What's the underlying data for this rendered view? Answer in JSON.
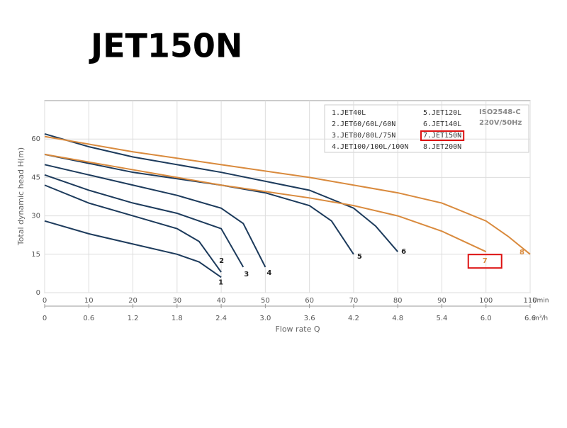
{
  "chart_data": {
    "type": "line",
    "title": "JET150N",
    "x_label": "Flow rate Q",
    "y_label": "Total dynamic head H(m)",
    "x_unit": "l/min",
    "x2_unit": "m³/h",
    "xlim": [
      0,
      110
    ],
    "xticks": [
      0,
      10,
      20,
      30,
      40,
      50,
      60,
      70,
      80,
      90,
      100,
      110
    ],
    "x2lim": [
      0,
      6.6
    ],
    "x2ticks": [
      0,
      0.6,
      1.2,
      1.8,
      2.4,
      {
        "value": 3,
        "label": "3.0"
      },
      3.6,
      4.2,
      4.8,
      5.4,
      {
        "value": 6,
        "label": "6.0"
      },
      6.6
    ],
    "ylim": [
      0,
      75
    ],
    "yticks": [
      0,
      15,
      30,
      45,
      60
    ],
    "grid": true,
    "notes": [
      "ISO2548-C",
      "220V/50Hz"
    ],
    "series": [
      {
        "name": "1.JET40L",
        "label": "1",
        "color": "#1d3b5c",
        "x": [
          0,
          10,
          20,
          30,
          35,
          40
        ],
        "values": [
          28,
          23,
          19,
          15,
          12,
          6
        ]
      },
      {
        "name": "2.JET60/60L/60N",
        "label": "2",
        "color": "#1d3b5c",
        "x": [
          0,
          10,
          20,
          30,
          35,
          40
        ],
        "values": [
          42,
          35,
          30,
          25,
          20,
          8
        ]
      },
      {
        "name": "3.JET80/80L/75N",
        "label": "3",
        "color": "#1d3b5c",
        "x": [
          0,
          10,
          20,
          30,
          40,
          45
        ],
        "values": [
          46,
          40,
          35,
          31,
          25,
          10
        ]
      },
      {
        "name": "4.JET100/100L/100N",
        "label": "4",
        "color": "#1d3b5c",
        "x": [
          0,
          10,
          20,
          30,
          40,
          45,
          50
        ],
        "values": [
          50,
          46,
          42,
          38,
          33,
          27,
          10
        ]
      },
      {
        "name": "5.JET120L",
        "label": "5",
        "color": "#1d3b5c",
        "x": [
          0,
          20,
          40,
          50,
          60,
          65,
          70
        ],
        "values": [
          54,
          47,
          42,
          39,
          34,
          28,
          15
        ]
      },
      {
        "name": "6.JET140L",
        "label": "6",
        "color": "#1d3b5c",
        "x": [
          0,
          10,
          20,
          40,
          60,
          70,
          75,
          80
        ],
        "values": [
          62,
          57,
          53,
          47,
          40,
          33,
          26,
          16
        ]
      },
      {
        "name": "7.JET150N",
        "label": "7",
        "color": "#d98a3d",
        "x": [
          0,
          20,
          40,
          60,
          70,
          80,
          90,
          100
        ],
        "values": [
          54,
          48,
          42,
          37,
          34,
          30,
          24,
          16
        ]
      },
      {
        "name": "8.JET200N",
        "label": "8",
        "color": "#d98a3d",
        "x": [
          0,
          20,
          40,
          60,
          80,
          90,
          100,
          105,
          110
        ],
        "values": [
          61,
          55,
          50,
          45,
          39,
          35,
          28,
          22,
          15
        ]
      }
    ]
  }
}
